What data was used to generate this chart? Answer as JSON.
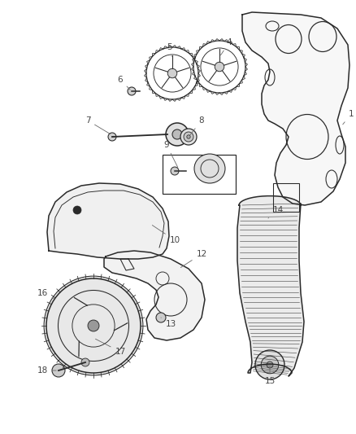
{
  "background_color": "#ffffff",
  "line_color": "#2a2a2a",
  "label_color": "#444444",
  "fig_width": 4.38,
  "fig_height": 5.33,
  "dpi": 100
}
